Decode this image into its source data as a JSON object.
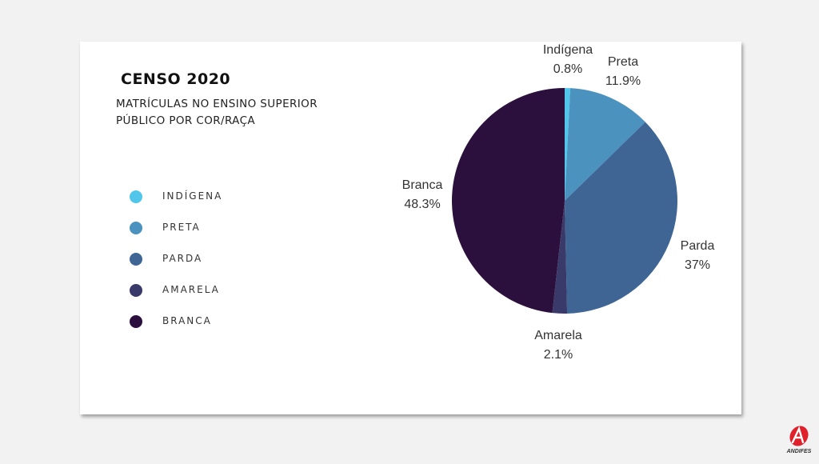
{
  "chart_data": {
    "type": "pie",
    "title": "CENSO 2020",
    "subtitle": "MATRÍCULAS NO ENSINO SUPERIOR PÚBLICO POR COR/RAÇA",
    "legend_position": "left",
    "legend": [
      "INDÍGENA",
      "PRETA",
      "PARDA",
      "AMARELA",
      "BRANCA"
    ],
    "slices": [
      {
        "label": "Indígena",
        "value": 0.8,
        "value_label": "0.8%",
        "color": "#52c6ea"
      },
      {
        "label": "Preta",
        "value": 11.9,
        "value_label": "11.9%",
        "color": "#4b92bf"
      },
      {
        "label": "Parda",
        "value": 37,
        "value_label": "37%",
        "color": "#3f6595"
      },
      {
        "label": "Amarela",
        "value": 2.1,
        "value_label": "2.1%",
        "color": "#39396a"
      },
      {
        "label": "Branca",
        "value": 48.3,
        "value_label": "48.3%",
        "color": "#2b0f3c"
      }
    ]
  },
  "logo": {
    "text": "ANDIFES",
    "color": "#e0202a"
  }
}
